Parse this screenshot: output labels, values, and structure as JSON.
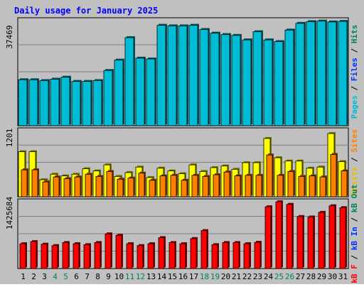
{
  "chart_data": {
    "type": "bar",
    "title": "Daily usage for January 2025",
    "categories": [
      "1",
      "2",
      "3",
      "4",
      "5",
      "6",
      "7",
      "8",
      "9",
      "10",
      "11",
      "12",
      "13",
      "14",
      "15",
      "16",
      "17",
      "18",
      "19",
      "20",
      "21",
      "22",
      "23",
      "24",
      "25",
      "26",
      "27",
      "28",
      "29",
      "30",
      "31"
    ],
    "weekend_days": [
      4,
      5,
      11,
      12,
      18,
      19,
      25,
      26
    ],
    "panels": [
      {
        "scale_label": "37469",
        "ylim": [
          0,
          37469
        ],
        "legend": [
          {
            "text": "Pages",
            "color": "#00bcd4"
          },
          {
            "text": " / ",
            "color": "#000000"
          },
          {
            "text": "Files",
            "color": "#0030ff"
          },
          {
            "text": " / ",
            "color": "#000000"
          },
          {
            "text": "Hits",
            "color": "#008060"
          }
        ],
        "series": [
          {
            "name": "Pages",
            "color": "#00bcd4",
            "values": [
              16400,
              16400,
              16100,
              16600,
              17300,
              15800,
              15800,
              16100,
              19700,
              23400,
              31400,
              24100,
              23800,
              35800,
              35600,
              35600,
              35800,
              34300,
              33000,
              32500,
              32200,
              30600,
              33500,
              30600,
              30000,
              34100,
              36500,
              37100,
              37300,
              37000,
              37200
            ]
          },
          {
            "name": "Files",
            "color": "#0030ff",
            "values": [
              16200,
              16200,
              15800,
              16300,
              17000,
              15500,
              15500,
              15800,
              19400,
              23200,
              31100,
              23800,
              23500,
              35400,
              35300,
              35300,
              35500,
              34100,
              32800,
              32300,
              32000,
              30400,
              33300,
              30400,
              29800,
              33900,
              36300,
              36800,
              37000,
              36700,
              36900
            ]
          },
          {
            "name": "Hits",
            "color": "#008060",
            "values": [
              16400,
              16400,
              16100,
              16600,
              17300,
              15800,
              15800,
              16100,
              19700,
              23400,
              31400,
              24100,
              23800,
              35800,
              35600,
              35600,
              35800,
              34300,
              33000,
              32500,
              32200,
              30600,
              33500,
              30600,
              30000,
              34100,
              36500,
              37100,
              37300,
              37000,
              37200
            ]
          }
        ],
        "bar_values_approx": [
          16400,
          16400,
          16100,
          16600,
          17300,
          15800,
          15800,
          16100,
          19700,
          23400,
          31400,
          24100,
          23800,
          35800,
          35600,
          35600,
          35800,
          34300,
          33000,
          32500,
          32200,
          30600,
          33500,
          30600,
          30000,
          34100,
          36500,
          37100,
          37300,
          37000,
          37200
        ]
      },
      {
        "scale_label": "1201",
        "ylim": [
          0,
          1201
        ],
        "legend": [
          {
            "text": "Visits",
            "color": "#e0c000"
          },
          {
            "text": " / ",
            "color": "#000000"
          },
          {
            "text": "Sites",
            "color": "#ff8000"
          }
        ],
        "series": [
          {
            "name": "Visits",
            "color": "#ffff00",
            "values": [
              820,
              820,
              310,
              410,
              380,
              410,
              510,
              470,
              580,
              370,
              440,
              540,
              350,
              520,
              470,
              420,
              580,
              460,
              530,
              560,
              500,
              620,
              620,
              1060,
              710,
              650,
              650,
              520,
              540,
              1150,
              640
            ]
          },
          {
            "name": "Sites",
            "color": "#ff8000",
            "values": [
              490,
              490,
              270,
              360,
              330,
              360,
              410,
              370,
              460,
              320,
              340,
              430,
              300,
              380,
              390,
              300,
              390,
              370,
              400,
              450,
              380,
              390,
              390,
              760,
              390,
              460,
              370,
              380,
              360,
              770,
              470
            ]
          }
        ]
      },
      {
        "scale_label": "1425684",
        "ylim": [
          0,
          1425684
        ],
        "legend": [
          {
            "text": "kB F",
            "color": "#ff0000"
          },
          {
            "text": " / ",
            "color": "#000000"
          },
          {
            "text": "kB In",
            "color": "#0030ff"
          },
          {
            "text": " / ",
            "color": "#000000"
          },
          {
            "text": "kB Out",
            "color": "#008060"
          }
        ],
        "series": [
          {
            "name": "kB F",
            "color": "#ff0000",
            "values": [
              530000,
              575000,
              520000,
              490000,
              555000,
              530000,
              510000,
              555000,
              740000,
              710000,
              530000,
              490000,
              530000,
              660000,
              555000,
              530000,
              640000,
              810000,
              510000,
              555000,
              555000,
              530000,
              560000,
              1320000,
              1425684,
              1370000,
              1110000,
              1100000,
              1200000,
              1340000,
              1300000
            ]
          }
        ]
      }
    ]
  }
}
